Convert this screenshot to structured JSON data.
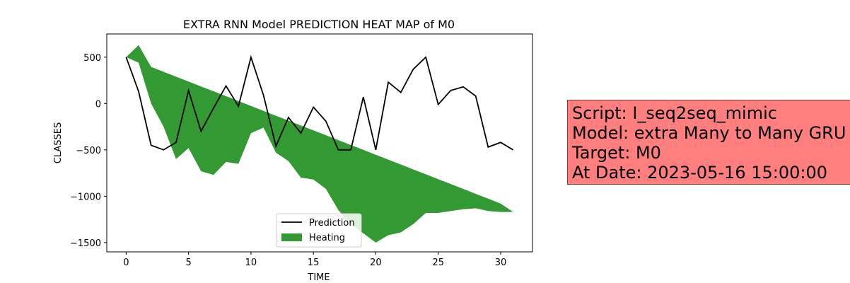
{
  "chart_data": {
    "type": "line",
    "title": "EXTRA RNN Model PREDICTION HEAT MAP of M0",
    "xlabel": "TIME",
    "ylabel": "CLASSES",
    "xlim": [
      -1.55,
      32.55
    ],
    "ylim": [
      -1600,
      750
    ],
    "xticks": [
      0,
      5,
      10,
      15,
      20,
      25,
      30
    ],
    "yticks": [
      500,
      0,
      -500,
      -1000,
      -1500
    ],
    "ytick_labels": [
      "500",
      "0",
      "−500",
      "−1000",
      "−1500"
    ],
    "grid": false,
    "legend_placement": "lower center",
    "series": [
      {
        "name": "Prediction",
        "kind": "line",
        "color": "#000000",
        "x": [
          0,
          1,
          2,
          3,
          4,
          5,
          6,
          7,
          8,
          9,
          10,
          11,
          12,
          13,
          14,
          15,
          16,
          17,
          18,
          19,
          20,
          21,
          22,
          23,
          24,
          25,
          26,
          27,
          28,
          29,
          30,
          31
        ],
        "y": [
          500,
          130,
          -450,
          -500,
          -420,
          140,
          -300,
          -50,
          190,
          -30,
          500,
          90,
          -460,
          -150,
          -320,
          -40,
          -190,
          -500,
          -500,
          70,
          -500,
          230,
          120,
          370,
          500,
          -10,
          140,
          180,
          80,
          -470,
          -420,
          -500
        ]
      },
      {
        "name": "Heating",
        "kind": "area",
        "color": "#008000",
        "opacity": 0.8,
        "x": [
          0,
          1,
          2,
          3,
          4,
          5,
          6,
          7,
          8,
          9,
          10,
          11,
          12,
          13,
          14,
          15,
          16,
          17,
          18,
          19,
          20,
          21,
          22,
          23,
          24,
          25,
          26,
          27,
          28,
          29,
          30,
          31
        ],
        "upper": [
          500,
          630,
          395,
          342,
          289,
          237,
          184,
          132,
          79,
          26,
          -26,
          -79,
          -132,
          -184,
          -237,
          -289,
          -342,
          -395,
          -447,
          -500,
          -553,
          -605,
          -658,
          -711,
          -763,
          -816,
          -868,
          -921,
          -974,
          -1026,
          -1079,
          -1170
        ],
        "lower": [
          500,
          440,
          0,
          -250,
          -600,
          -480,
          -730,
          -770,
          -630,
          -650,
          -320,
          -260,
          -530,
          -620,
          -800,
          -820,
          -920,
          -1150,
          -1300,
          -1400,
          -1500,
          -1420,
          -1390,
          -1300,
          -1180,
          -1180,
          -1160,
          -1140,
          -1130,
          -1160,
          -1170,
          -1170
        ]
      }
    ]
  },
  "info_box": {
    "lines": [
      "Script: I_seq2seq_mimic",
      "Model: extra Many to Many GRU",
      "Target: M0",
      "At Date: 2023-05-16 15:00:00"
    ],
    "background": "#ff7f7f"
  }
}
